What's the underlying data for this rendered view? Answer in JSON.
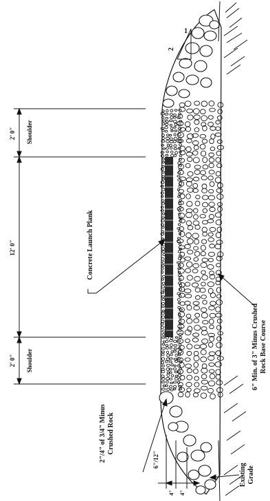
{
  "dimensions": {
    "shoulder_top_width": "2' 0\"",
    "shoulder_top_label": "Shoulder",
    "plank_width": "12' 0\"",
    "shoulder_bottom_width": "2' 0\"",
    "shoulder_bottom_label": "Shoulder"
  },
  "slope": {
    "rise": "1",
    "run": "2"
  },
  "labels": {
    "concrete_plank": "Concrete Launch Plank",
    "base_course_line1": "6\" Min. of 3\" Minus Crushed",
    "base_course_line2": "Rock Base Course",
    "crushed_rock_line1": "2\"/4\" of 3/4\" Minus",
    "crushed_rock_line2": "Crushed Rock",
    "existing_grade_line1": "Existing",
    "existing_grade_line2": "Grade",
    "thickness_range": "6\"/12\"",
    "dim_4a": "4\"",
    "dim_4b": "4\""
  },
  "colors": {
    "ink": "#111111",
    "plank": "#2a2a2a"
  }
}
